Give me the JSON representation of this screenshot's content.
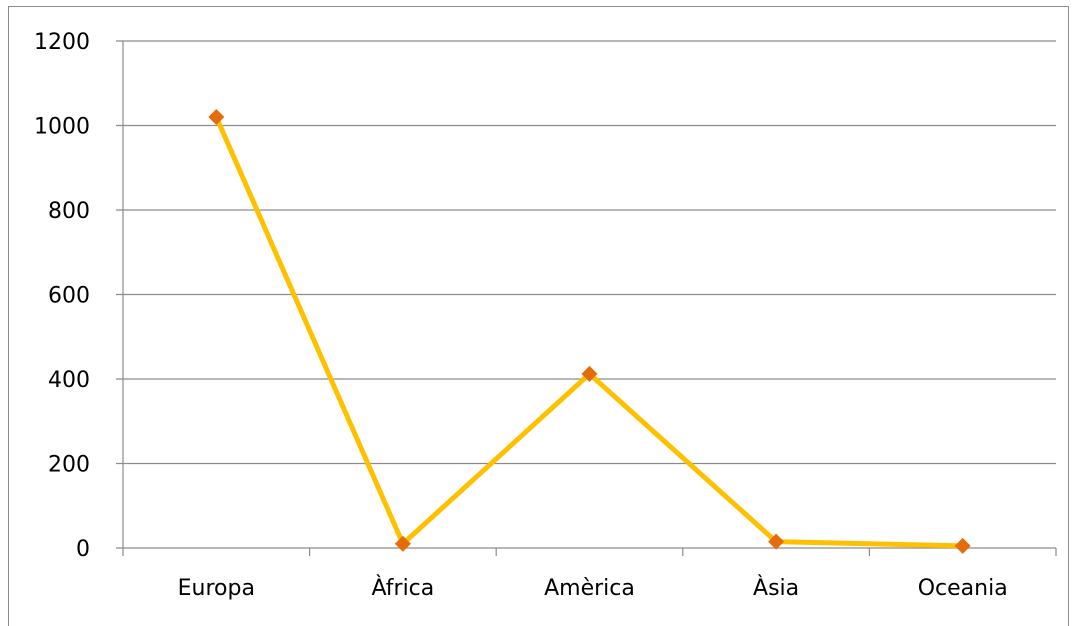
{
  "chart_data": {
    "type": "line",
    "categories": [
      "Europa",
      "Àfrica",
      "Amèrica",
      "Àsia",
      "Oceania"
    ],
    "series": [
      {
        "values": [
          1020,
          10,
          412,
          15,
          5
        ],
        "line_color": "#FFC000",
        "marker_color": "#E46C0A",
        "marker": "diamond"
      }
    ],
    "ylim": [
      0,
      1200
    ],
    "y_ticks": [
      "0",
      "200",
      "400",
      "600",
      "800",
      "1000",
      "1200"
    ],
    "grid": true,
    "legend": "none",
    "title": "",
    "xlabel": "",
    "ylabel": ""
  }
}
